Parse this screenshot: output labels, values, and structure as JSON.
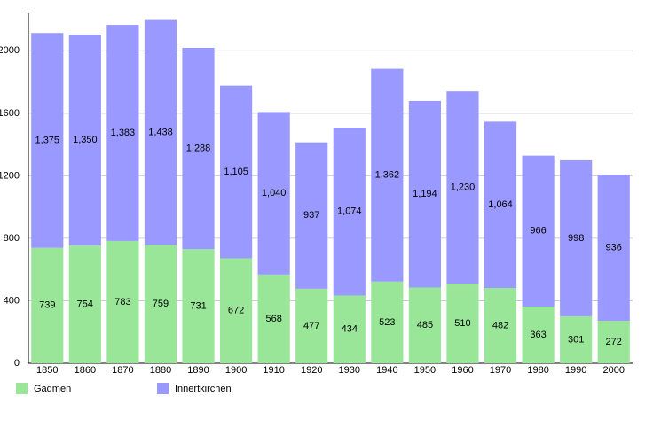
{
  "chart_data": {
    "type": "stacked-bar",
    "categories": [
      "1850",
      "1860",
      "1870",
      "1880",
      "1890",
      "1900",
      "1910",
      "1920",
      "1930",
      "1940",
      "1950",
      "1960",
      "1970",
      "1980",
      "1990",
      "2000"
    ],
    "series": [
      {
        "name": "Gadmen",
        "color": "#99e699",
        "values": [
          739,
          754,
          783,
          759,
          731,
          672,
          568,
          477,
          434,
          523,
          485,
          510,
          482,
          363,
          301,
          272
        ]
      },
      {
        "name": "Innertkirchen",
        "color": "#9999ff",
        "values": [
          1375,
          1350,
          1383,
          1438,
          1288,
          1105,
          1040,
          937,
          1074,
          1362,
          1194,
          1230,
          1064,
          966,
          998,
          936
        ],
        "value_labels": [
          "1,375",
          "1,350",
          "1,383",
          "1,438",
          "1,288",
          "1,105",
          "1,040",
          "937",
          "1,074",
          "1,362",
          "1,194",
          "1,230",
          "1,064",
          "966",
          "998",
          "936"
        ]
      }
    ],
    "ylim": [
      0,
      2240
    ],
    "yticks": [
      0,
      400,
      800,
      1200,
      1600,
      2000
    ],
    "grid": true
  }
}
